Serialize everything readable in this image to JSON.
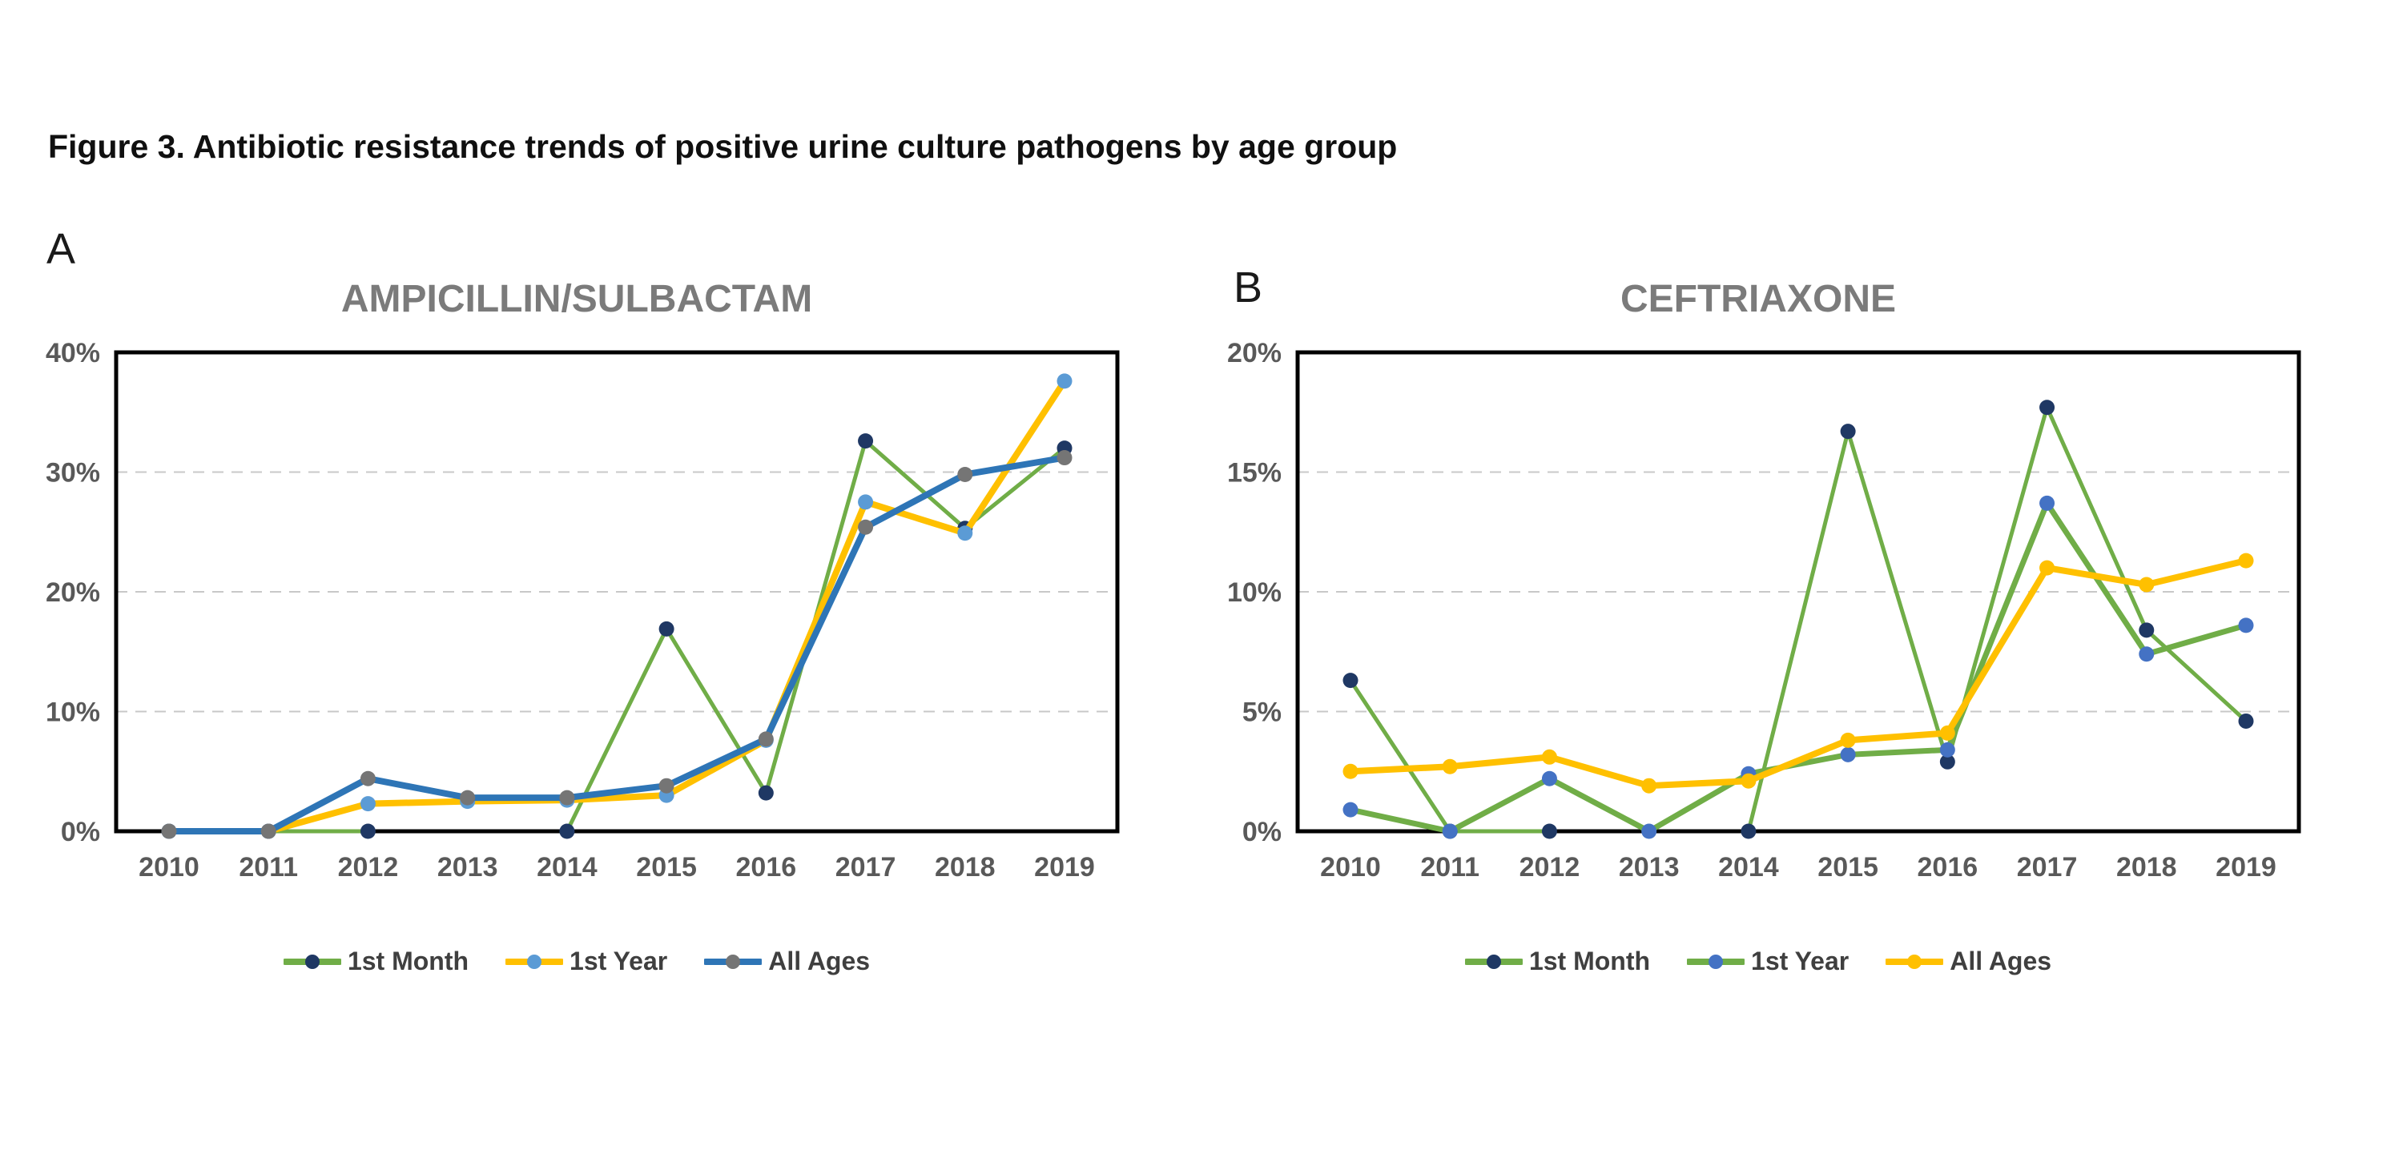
{
  "figure": {
    "title": "Figure 3. Antibiotic resistance trends of positive urine culture pathogens by age group"
  },
  "chart_data": [
    {
      "panel_label": "A",
      "type": "line",
      "title": "AMPICILLIN/SULBACTAM",
      "x_categories": [
        "2010",
        "2011",
        "2012",
        "2013",
        "2014",
        "2015",
        "2016",
        "2017",
        "2018",
        "2019"
      ],
      "y_axis": {
        "min": 0,
        "max": 40,
        "tick_step": 10,
        "tick_labels": [
          "0%",
          "10%",
          "20%",
          "30%",
          "40%"
        ],
        "unit": "%"
      },
      "grid": {
        "horizontal_dashed": true,
        "gridline_values": [
          10,
          20,
          30
        ],
        "color": "#c8c8c8"
      },
      "legend_position": "bottom",
      "series": [
        {
          "name": "1st Month",
          "line_color": "#70AD47",
          "marker_color": "#1F3864",
          "line_width": 5,
          "values": [
            0,
            0,
            0,
            null,
            0,
            16.9,
            3.2,
            32.6,
            25.3,
            32.0
          ]
        },
        {
          "name": "1st Year",
          "line_color": "#FFC000",
          "marker_color": "#5B9BD5",
          "line_width": 8,
          "values": [
            0,
            0,
            2.3,
            2.5,
            2.6,
            3.0,
            7.6,
            27.5,
            24.9,
            37.6
          ]
        },
        {
          "name": "All Ages",
          "line_color": "#2E75B6",
          "marker_color": "#757575",
          "line_width": 8,
          "values": [
            0,
            0,
            4.4,
            2.8,
            2.8,
            3.8,
            7.7,
            25.4,
            29.8,
            31.2
          ]
        }
      ]
    },
    {
      "panel_label": "B",
      "type": "line",
      "title": "CEFTRIAXONE",
      "x_categories": [
        "2010",
        "2011",
        "2012",
        "2013",
        "2014",
        "2015",
        "2016",
        "2017",
        "2018",
        "2019"
      ],
      "y_axis": {
        "min": 0,
        "max": 20,
        "tick_step": 5,
        "tick_labels": [
          "0%",
          "5%",
          "10%",
          "15%",
          "20%"
        ],
        "unit": "%"
      },
      "grid": {
        "horizontal_dashed": true,
        "gridline_values": [
          5,
          10,
          15
        ],
        "color": "#c8c8c8"
      },
      "legend_position": "bottom",
      "series": [
        {
          "name": "1st Month",
          "line_color": "#70AD47",
          "marker_color": "#1F3864",
          "line_width": 5,
          "values": [
            6.3,
            0,
            0,
            null,
            0,
            16.7,
            2.9,
            17.7,
            8.4,
            4.6
          ]
        },
        {
          "name": "1st Year",
          "line_color": "#70AD47",
          "marker_color": "#4472C4",
          "line_width": 7,
          "values": [
            0.9,
            0,
            2.2,
            0,
            2.4,
            3.2,
            3.4,
            13.7,
            7.4,
            8.6
          ]
        },
        {
          "name": "All Ages",
          "line_color": "#FFC000",
          "marker_color": "#FFC000",
          "line_width": 8,
          "values": [
            2.5,
            2.7,
            3.1,
            1.9,
            2.1,
            3.8,
            4.1,
            11.0,
            10.3,
            11.3
          ]
        }
      ]
    }
  ],
  "style": {
    "axis_label_color": "#595959",
    "plot_border_color": "#000000",
    "background": "#ffffff"
  }
}
